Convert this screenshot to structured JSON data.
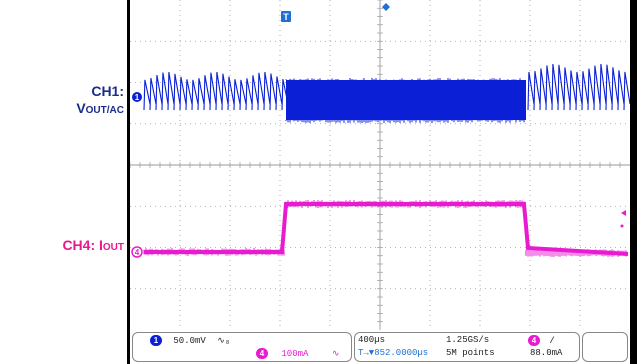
{
  "labels": {
    "ch1_main": "CH1:",
    "ch1_sub_main": "V",
    "ch1_sub_small": "OUT/AC",
    "ch4_main": "CH4: I",
    "ch4_sub": "OUT"
  },
  "markers": {
    "trigger_top": "T",
    "ch1_marker": "1",
    "ch4_marker": "4"
  },
  "status_bar": {
    "ch1_badge": "1",
    "ch1_scale": "50.0mV",
    "ch1_coupling": "∿₈",
    "ch4_badge": "4",
    "ch4_scale": "100mA",
    "ch4_coupling": "∿",
    "timebase": "400µs",
    "trigger_pos": "T→▼852.0000µs",
    "sample_rate": "1.25GS/s",
    "record_length": "5M points",
    "trig_badge": "4",
    "trig_slope": "/",
    "trig_level": "88.0mA"
  },
  "colors": {
    "ch1": "#0a1fd6",
    "ch4": "#e81bd1",
    "grid": "#9a9a9a"
  }
}
